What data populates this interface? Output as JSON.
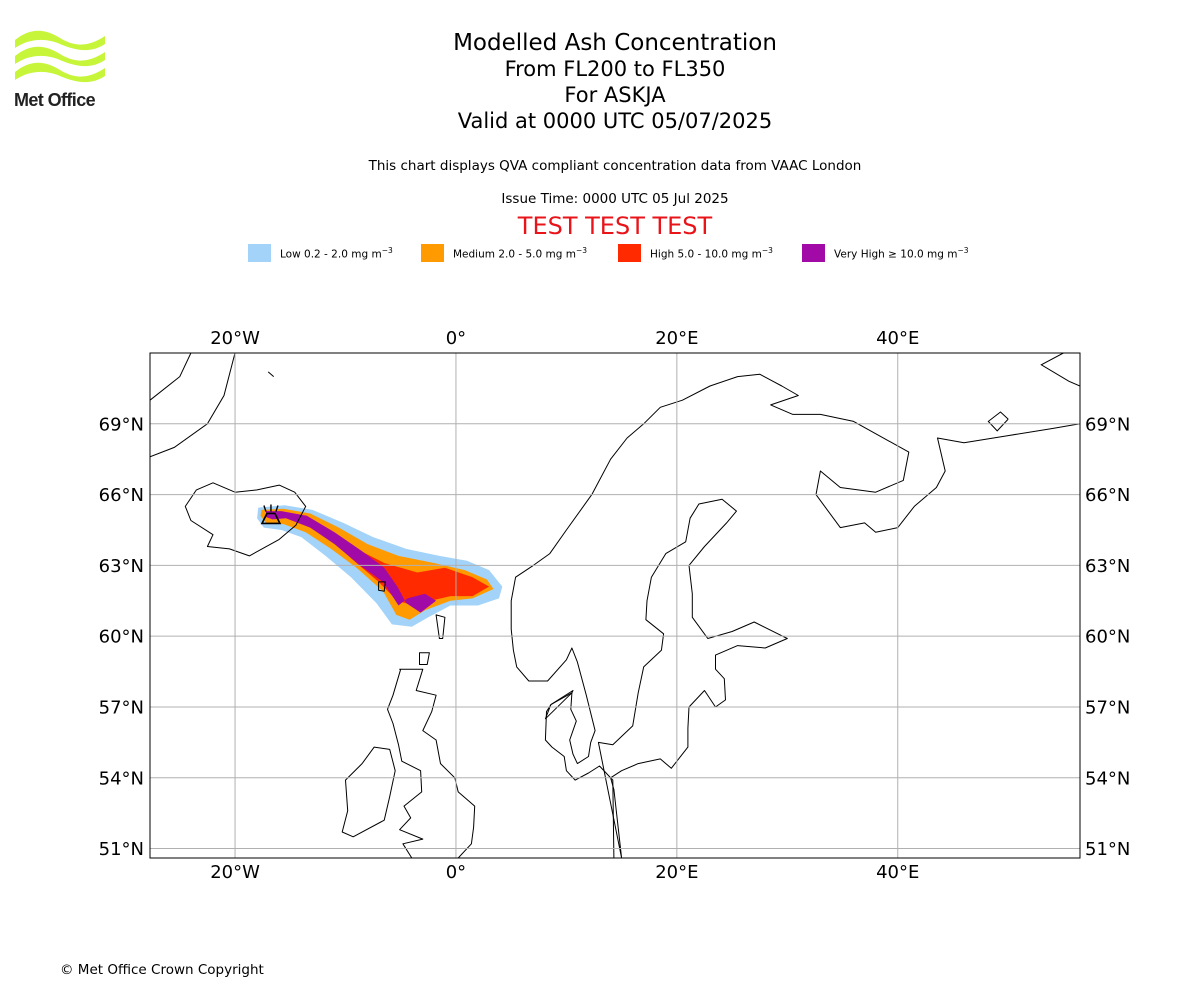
{
  "logo": {
    "text": "Met Office",
    "color": "#c6f53a"
  },
  "header": {
    "title": "Modelled Ash Concentration",
    "levels": "From FL200 to FL350",
    "volcano": "For ASKJA",
    "valid": "Valid at 0000 UTC 05/07/2025",
    "description": "This chart displays QVA compliant concentration data from VAAC London",
    "issue_time": "Issue Time: 0000 UTC 05 Jul 2025",
    "test_banner": "TEST TEST TEST"
  },
  "legend": {
    "unit": "mg m",
    "unit_exponent": "−3",
    "items": [
      {
        "label": "Low 0.2 - 2.0",
        "color": "#a3d3f9"
      },
      {
        "label": "Medium 2.0 - 5.0",
        "color": "#ff9a00"
      },
      {
        "label": "High 5.0 - 10.0",
        "color": "#ff2a00"
      },
      {
        "label": "Very High  ≥  10.0",
        "color": "#a20aa8"
      }
    ]
  },
  "map": {
    "projection": "plate-carree",
    "lon_range": [
      -27.7,
      56.5
    ],
    "lat_range": [
      50.6,
      72.0
    ],
    "lon_ticks": [
      {
        "value": -20,
        "label": "20°W"
      },
      {
        "value": 0,
        "label": "0°"
      },
      {
        "value": 20,
        "label": "20°E"
      },
      {
        "value": 40,
        "label": "40°E"
      }
    ],
    "lat_ticks": [
      {
        "value": 69,
        "label": "69°N"
      },
      {
        "value": 66,
        "label": "66°N"
      },
      {
        "value": 63,
        "label": "63°N"
      },
      {
        "value": 60,
        "label": "60°N"
      },
      {
        "value": 57,
        "label": "57°N"
      },
      {
        "value": 54,
        "label": "54°N"
      },
      {
        "value": 51,
        "label": "51°N"
      }
    ],
    "grid": true,
    "volcano_location": {
      "name": "ASKJA",
      "lon": -16.75,
      "lat": 65.03
    },
    "ash_cloud": {
      "very_high": [
        [
          -17.2,
          65.3
        ],
        [
          -15.8,
          65.3
        ],
        [
          -13.5,
          65.1
        ],
        [
          -11.0,
          64.4
        ],
        [
          -8.5,
          63.6
        ],
        [
          -6.5,
          62.9
        ],
        [
          -5.3,
          62.1
        ],
        [
          -4.5,
          61.4
        ],
        [
          -3.2,
          61.0
        ],
        [
          -1.8,
          61.5
        ],
        [
          -2.8,
          61.8
        ],
        [
          -4.4,
          61.6
        ],
        [
          -5.2,
          61.3
        ],
        [
          -6.6,
          62.3
        ],
        [
          -8.7,
          63.0
        ],
        [
          -11.0,
          63.9
        ],
        [
          -13.2,
          64.6
        ],
        [
          -15.4,
          65.0
        ],
        [
          -16.6,
          64.95
        ],
        [
          -17.2,
          65.05
        ]
      ],
      "high": [
        [
          -12.0,
          64.4
        ],
        [
          -9.0,
          63.7
        ],
        [
          -6.5,
          63.1
        ],
        [
          -3.5,
          62.7
        ],
        [
          -1.0,
          62.9
        ],
        [
          1.5,
          62.5
        ],
        [
          3.0,
          62.1
        ],
        [
          1.5,
          61.7
        ],
        [
          -0.5,
          61.7
        ],
        [
          -2.3,
          61.5
        ],
        [
          -3.8,
          61.3
        ],
        [
          -5.3,
          61.5
        ],
        [
          -7.0,
          62.3
        ],
        [
          -9.5,
          63.3
        ]
      ],
      "medium": [
        [
          -17.6,
          65.35
        ],
        [
          -15.6,
          65.4
        ],
        [
          -13.2,
          65.2
        ],
        [
          -10.6,
          64.6
        ],
        [
          -8.0,
          63.9
        ],
        [
          -5.2,
          63.4
        ],
        [
          -2.0,
          63.1
        ],
        [
          0.8,
          62.8
        ],
        [
          2.8,
          62.4
        ],
        [
          3.4,
          62.0
        ],
        [
          1.5,
          61.6
        ],
        [
          -0.5,
          61.5
        ],
        [
          -2.8,
          61.1
        ],
        [
          -4.2,
          60.7
        ],
        [
          -5.4,
          60.9
        ],
        [
          -6.6,
          61.9
        ],
        [
          -9.0,
          62.9
        ],
        [
          -11.3,
          63.7
        ],
        [
          -13.6,
          64.4
        ],
        [
          -15.6,
          64.75
        ],
        [
          -17.2,
          64.8
        ],
        [
          -17.7,
          65.1
        ]
      ],
      "low": [
        [
          -17.9,
          65.45
        ],
        [
          -15.5,
          65.55
        ],
        [
          -13.0,
          65.35
        ],
        [
          -10.2,
          64.8
        ],
        [
          -7.5,
          64.2
        ],
        [
          -4.5,
          63.7
        ],
        [
          -1.5,
          63.4
        ],
        [
          1.0,
          63.2
        ],
        [
          3.0,
          62.8
        ],
        [
          4.2,
          62.1
        ],
        [
          3.9,
          61.6
        ],
        [
          2.0,
          61.3
        ],
        [
          -0.5,
          61.3
        ],
        [
          -2.5,
          60.8
        ],
        [
          -4.0,
          60.4
        ],
        [
          -5.8,
          60.5
        ],
        [
          -7.2,
          61.4
        ],
        [
          -9.5,
          62.5
        ],
        [
          -11.8,
          63.4
        ],
        [
          -14.0,
          64.2
        ],
        [
          -15.8,
          64.5
        ],
        [
          -17.4,
          64.6
        ],
        [
          -18.0,
          65.0
        ]
      ]
    },
    "land": [
      [
        [
          -24.5,
          65.5
        ],
        [
          -23.5,
          66.2
        ],
        [
          -22.0,
          66.5
        ],
        [
          -20.0,
          66.1
        ],
        [
          -18.0,
          66.2
        ],
        [
          -16.0,
          66.4
        ],
        [
          -14.6,
          66.1
        ],
        [
          -13.6,
          65.5
        ],
        [
          -14.5,
          64.7
        ],
        [
          -16.0,
          64.1
        ],
        [
          -18.7,
          63.4
        ],
        [
          -20.5,
          63.7
        ],
        [
          -22.5,
          63.8
        ],
        [
          -22.0,
          64.3
        ],
        [
          -24.0,
          64.9
        ]
      ],
      [
        [
          -7.0,
          62.3
        ],
        [
          -6.4,
          62.3
        ],
        [
          -6.5,
          61.9
        ],
        [
          -7.0,
          61.95
        ]
      ],
      [
        [
          -1.8,
          60.9
        ],
        [
          -1.0,
          60.8
        ],
        [
          -1.2,
          59.9
        ],
        [
          -1.5,
          59.9
        ]
      ],
      [
        [
          -3.3,
          59.3
        ],
        [
          -2.4,
          59.3
        ],
        [
          -2.6,
          58.8
        ],
        [
          -3.3,
          58.8
        ]
      ],
      [
        [
          -5.1,
          58.6
        ],
        [
          -3.0,
          58.6
        ],
        [
          -3.6,
          57.7
        ],
        [
          -1.8,
          57.5
        ],
        [
          -2.2,
          56.8
        ],
        [
          -3.0,
          56.0
        ],
        [
          -1.8,
          55.6
        ],
        [
          -1.4,
          54.6
        ],
        [
          -0.1,
          54.0
        ],
        [
          0.2,
          53.4
        ],
        [
          1.7,
          52.8
        ],
        [
          1.6,
          51.9
        ],
        [
          1.4,
          51.2
        ],
        [
          0.2,
          50.6
        ],
        [
          -4.0,
          50.6
        ],
        [
          -4.8,
          51.2
        ],
        [
          -3.0,
          51.4
        ],
        [
          -5.1,
          51.8
        ],
        [
          -4.1,
          52.3
        ],
        [
          -4.7,
          52.8
        ],
        [
          -3.1,
          53.4
        ],
        [
          -3.2,
          54.3
        ],
        [
          -4.9,
          54.7
        ],
        [
          -5.2,
          55.4
        ],
        [
          -5.7,
          56.3
        ],
        [
          -6.2,
          56.9
        ],
        [
          -5.7,
          57.5
        ],
        [
          -5.0,
          58.6
        ]
      ],
      [
        [
          -6.0,
          55.2
        ],
        [
          -7.4,
          55.3
        ],
        [
          -8.5,
          54.6
        ],
        [
          -10.0,
          53.9
        ],
        [
          -9.8,
          52.6
        ],
        [
          -10.3,
          51.7
        ],
        [
          -9.3,
          51.5
        ],
        [
          -6.5,
          52.2
        ],
        [
          -6.0,
          53.2
        ],
        [
          -5.5,
          54.3
        ]
      ],
      [
        [
          5.0,
          61.5
        ],
        [
          5.4,
          62.5
        ],
        [
          7.0,
          63.0
        ],
        [
          8.5,
          63.5
        ],
        [
          10.0,
          64.5
        ],
        [
          12.3,
          66.0
        ],
        [
          14.0,
          67.5
        ],
        [
          15.5,
          68.4
        ],
        [
          17.0,
          69.0
        ],
        [
          18.5,
          69.7
        ],
        [
          20.5,
          70.0
        ],
        [
          23.0,
          70.6
        ],
        [
          25.5,
          71.0
        ],
        [
          27.5,
          71.1
        ],
        [
          29.5,
          70.6
        ],
        [
          31.0,
          70.2
        ],
        [
          28.5,
          69.8
        ],
        [
          30.5,
          69.4
        ],
        [
          33.0,
          69.4
        ],
        [
          36.0,
          69.1
        ],
        [
          41.0,
          67.8
        ],
        [
          40.5,
          66.6
        ],
        [
          38.0,
          66.1
        ],
        [
          34.8,
          66.3
        ],
        [
          33.0,
          67.0
        ],
        [
          32.6,
          66.0
        ],
        [
          34.8,
          64.6
        ],
        [
          37.0,
          64.8
        ],
        [
          38.0,
          64.4
        ],
        [
          40.0,
          64.6
        ],
        [
          41.5,
          65.5
        ],
        [
          43.5,
          66.3
        ],
        [
          44.3,
          67.0
        ],
        [
          43.6,
          68.4
        ],
        [
          46.0,
          68.2
        ],
        [
          50.0,
          68.5
        ],
        [
          54.0,
          68.8
        ],
        [
          56.5,
          69.0
        ],
        [
          56.5,
          50.6
        ],
        [
          14.3,
          50.6
        ],
        [
          14.2,
          53.9
        ],
        [
          13.0,
          54.5
        ],
        [
          12.0,
          54.2
        ],
        [
          10.8,
          53.9
        ],
        [
          10.0,
          54.3
        ],
        [
          9.8,
          54.9
        ],
        [
          8.7,
          55.3
        ],
        [
          8.1,
          55.6
        ],
        [
          8.2,
          56.8
        ],
        [
          8.6,
          57.1
        ],
        [
          10.5,
          57.6
        ],
        [
          10.4,
          56.9
        ],
        [
          10.9,
          56.4
        ],
        [
          10.3,
          55.6
        ],
        [
          10.6,
          55.0
        ],
        [
          11.0,
          54.6
        ],
        [
          12.0,
          54.9
        ],
        [
          12.2,
          55.5
        ],
        [
          12.6,
          56.0
        ],
        [
          11.8,
          57.5
        ],
        [
          11.0,
          58.9
        ],
        [
          10.5,
          59.5
        ],
        [
          10.0,
          59.0
        ],
        [
          8.3,
          58.1
        ],
        [
          6.6,
          58.1
        ],
        [
          5.5,
          58.7
        ],
        [
          5.2,
          59.4
        ],
        [
          5.0,
          60.3
        ]
      ],
      [
        [
          10.5,
          57.6
        ],
        [
          10.6,
          57.7
        ],
        [
          8.6,
          57.1
        ],
        [
          8.1,
          56.5
        ]
      ],
      [
        [
          15.0,
          50.6
        ],
        [
          14.3,
          53.5
        ],
        [
          14.0,
          54.0
        ],
        [
          15.0,
          54.3
        ],
        [
          16.5,
          54.6
        ],
        [
          18.5,
          54.8
        ],
        [
          19.5,
          54.4
        ],
        [
          21.0,
          55.3
        ],
        [
          21.0,
          56.1
        ],
        [
          21.1,
          57.0
        ],
        [
          22.5,
          57.7
        ],
        [
          23.5,
          57.0
        ],
        [
          24.4,
          57.3
        ],
        [
          24.3,
          58.2
        ],
        [
          23.5,
          58.6
        ],
        [
          23.5,
          59.2
        ],
        [
          25.5,
          59.6
        ],
        [
          28.0,
          59.5
        ],
        [
          30.0,
          59.9
        ],
        [
          27.0,
          60.6
        ],
        [
          25.0,
          60.2
        ],
        [
          22.8,
          59.9
        ],
        [
          21.4,
          60.8
        ],
        [
          21.4,
          61.8
        ],
        [
          21.1,
          63.0
        ],
        [
          22.5,
          63.8
        ],
        [
          24.5,
          64.8
        ],
        [
          25.4,
          65.3
        ],
        [
          24.1,
          65.8
        ],
        [
          22.0,
          65.6
        ],
        [
          21.2,
          65.0
        ],
        [
          20.8,
          64.0
        ],
        [
          19.0,
          63.5
        ],
        [
          17.7,
          62.5
        ],
        [
          17.3,
          61.5
        ],
        [
          17.2,
          60.7
        ],
        [
          18.8,
          60.1
        ],
        [
          18.6,
          59.4
        ],
        [
          17.0,
          58.7
        ],
        [
          16.5,
          57.6
        ],
        [
          16.0,
          56.2
        ],
        [
          14.2,
          55.4
        ],
        [
          12.9,
          55.5
        ]
      ]
    ],
    "coast_lines": [
      [
        [
          -27.7,
          70.0
        ],
        [
          -25.0,
          71.0
        ],
        [
          -24.0,
          72.0
        ]
      ],
      [
        [
          -27.7,
          67.6
        ],
        [
          -25.5,
          68.0
        ],
        [
          -22.5,
          69.0
        ],
        [
          -21.0,
          70.2
        ],
        [
          -20.0,
          72.0
        ]
      ],
      [
        [
          -17.0,
          71.2
        ],
        [
          -16.5,
          71.0
        ]
      ],
      [
        [
          55.0,
          72.0
        ],
        [
          53.0,
          71.5
        ],
        [
          55.5,
          70.8
        ],
        [
          56.5,
          70.6
        ]
      ],
      [
        [
          50.0,
          69.2
        ],
        [
          49.0,
          68.7
        ],
        [
          48.2,
          69.1
        ],
        [
          49.3,
          69.5
        ],
        [
          50.0,
          69.2
        ]
      ]
    ]
  },
  "footer": {
    "copyright": "© Met Office Crown Copyright"
  }
}
